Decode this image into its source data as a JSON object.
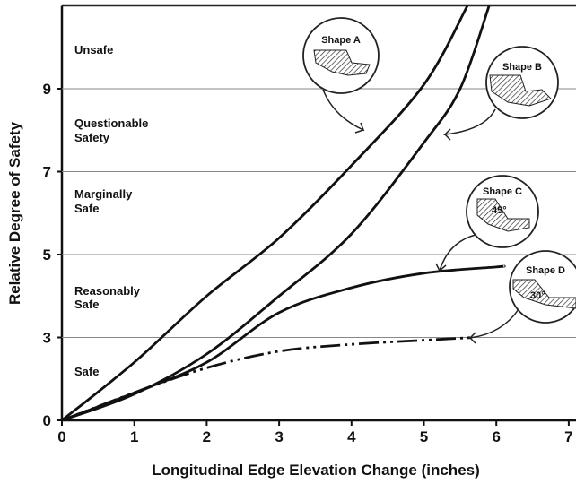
{
  "chart_data": {
    "type": "line",
    "x_label": "Longitudinal Edge Elevation Change (inches)",
    "y_label": "Relative Degree of Safety",
    "xlim": [
      0,
      7
    ],
    "xticks": [
      0,
      1,
      2,
      3,
      4,
      5,
      6,
      7
    ],
    "ylim": [
      0,
      11
    ],
    "yticks": [
      0,
      3,
      5,
      7,
      9
    ],
    "y_scale": "ticks evenly spaced",
    "grid": true,
    "region_labels": [
      [
        "Unsafe"
      ],
      [
        "Questionable",
        "Safety"
      ],
      [
        "Marginally",
        "Safe"
      ],
      [
        "Reasonably",
        "Safe"
      ],
      [
        "Safe"
      ]
    ],
    "series": [
      {
        "name": "Shape A",
        "color": "#111111",
        "style": "solid",
        "x": [
          0,
          1,
          2,
          3,
          4,
          5,
          5.6
        ],
        "values": [
          0,
          2.1,
          4.0,
          5.4,
          7.15,
          9.1,
          11
        ]
      },
      {
        "name": "Shape B",
        "color": "#111111",
        "style": "solid",
        "x": [
          0,
          1,
          2,
          3,
          4,
          5,
          5.5,
          5.9
        ],
        "values": [
          0,
          0.95,
          2.4,
          4.0,
          5.5,
          7.7,
          9.0,
          11
        ]
      },
      {
        "name": "Shape C",
        "color": "#111111",
        "style": "solid",
        "x": [
          0,
          1,
          2,
          3,
          4,
          5,
          6,
          6.1
        ],
        "values": [
          0,
          1.0,
          2.1,
          3.6,
          4.2,
          4.55,
          4.7,
          4.72
        ]
      },
      {
        "name": "Shape D",
        "color": "#111111",
        "style": "dash-dot",
        "x": [
          0,
          1,
          2,
          3,
          4,
          5,
          5.7
        ],
        "values": [
          0,
          1.0,
          1.9,
          2.5,
          2.75,
          2.9,
          3.0
        ]
      }
    ],
    "angle_labels": [
      "45°",
      "30°"
    ]
  }
}
